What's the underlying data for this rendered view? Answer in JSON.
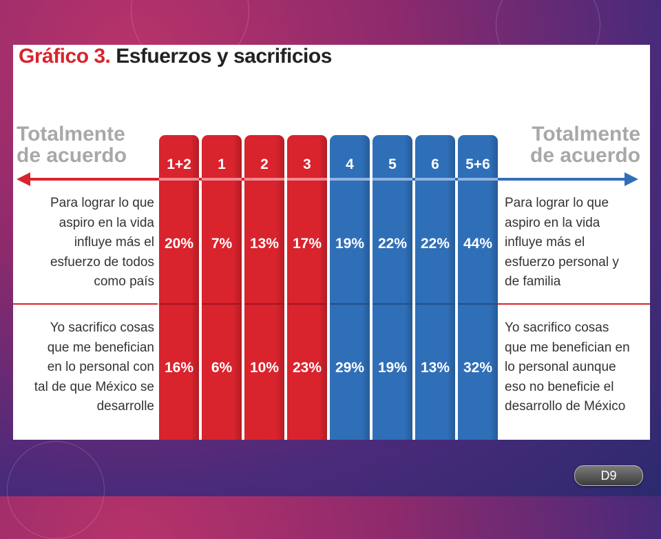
{
  "slide": {
    "badge": "D9"
  },
  "chart_data": {
    "type": "table",
    "title_prefix": "Gráfico 3.",
    "title": "Esfuerzos y sacrificios",
    "scale_left_label": [
      "Totalmente",
      "de acuerdo"
    ],
    "scale_right_label": [
      "Totalmente",
      "de acuerdo"
    ],
    "categories": [
      "1+2",
      "1",
      "2",
      "3",
      "4",
      "5",
      "6",
      "5+6"
    ],
    "colors": {
      "red": "#d9232d",
      "blue": "#2f6fb8"
    },
    "series": [
      {
        "left_statement": [
          "Para lograr lo que",
          "aspiro en la vida",
          "influye más el",
          "esfuerzo de todos",
          "como país"
        ],
        "right_statement": [
          "Para lograr lo que",
          "aspiro en la vida",
          "influye más el",
          "esfuerzo personal y",
          "de familia"
        ],
        "values": [
          20,
          7,
          13,
          17,
          19,
          22,
          22,
          44
        ],
        "labels": [
          "20%",
          "7%",
          "13%",
          "17%",
          "19%",
          "22%",
          "22%",
          "44%"
        ]
      },
      {
        "left_statement": [
          "Yo sacrifico cosas",
          "que me benefician",
          "en lo personal con",
          "tal de que México se",
          "desarrolle"
        ],
        "right_statement": [
          "Yo sacrifico cosas",
          "que me benefician en",
          "lo personal aunque",
          "eso no beneficie el",
          "desarrollo de México"
        ],
        "values": [
          16,
          6,
          10,
          23,
          29,
          19,
          13,
          32
        ],
        "labels": [
          "16%",
          "6%",
          "10%",
          "23%",
          "29%",
          "19%",
          "13%",
          "32%"
        ]
      }
    ]
  }
}
